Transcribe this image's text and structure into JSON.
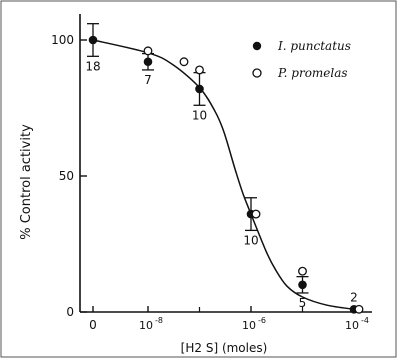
{
  "chart_data": {
    "type": "scatter",
    "title": "",
    "xlabel": "[H2 S]  (moles)",
    "ylabel": "%  Control  activity",
    "x_scale": "log",
    "x_ticks": [
      {
        "value": 0,
        "label": "0"
      },
      {
        "value": 1e-08,
        "base": "10",
        "exp": "-8"
      },
      {
        "value": 1e-06,
        "base": "10",
        "exp": "-6"
      },
      {
        "value": 0.0001,
        "base": "10",
        "exp": "-4"
      }
    ],
    "y_ticks": [
      0,
      50,
      100
    ],
    "ylim": [
      0,
      100
    ],
    "grid": false,
    "legend_position": "top-right",
    "series": [
      {
        "name": "I. punctatus",
        "marker": "filled-circle",
        "points": [
          {
            "x": 0,
            "y": 100,
            "err": 6,
            "n": "18"
          },
          {
            "x": 1e-08,
            "y": 92,
            "err": 3,
            "n": "7"
          },
          {
            "x": 1e-07,
            "y": 82,
            "err": 6,
            "n": "10"
          },
          {
            "x": 1e-06,
            "y": 36,
            "err": 6,
            "n": "10"
          },
          {
            "x": 1e-05,
            "y": 10,
            "err": 3,
            "n": "5"
          },
          {
            "x": 0.0001,
            "y": 1,
            "err": 0,
            "n": "2"
          }
        ]
      },
      {
        "name": "P. promelas",
        "marker": "open-circle",
        "points": [
          {
            "x": 1e-08,
            "y": 96
          },
          {
            "x": 5e-08,
            "y": 92
          },
          {
            "x": 1e-07,
            "y": 89
          },
          {
            "x": 1e-06,
            "y": 36
          },
          {
            "x": 1e-05,
            "y": 15
          },
          {
            "x": 0.0001,
            "y": 1
          }
        ]
      }
    ],
    "fit_curve": [
      [
        0,
        100
      ],
      [
        1e-08,
        95.3
      ],
      [
        3e-08,
        91
      ],
      [
        1e-07,
        82.5
      ],
      [
        2e-07,
        73.8
      ],
      [
        3e-07,
        66
      ],
      [
        5e-07,
        52
      ],
      [
        7e-07,
        43.5
      ],
      [
        1e-06,
        36
      ],
      [
        2e-06,
        22
      ],
      [
        3e-06,
        15.5
      ],
      [
        5e-06,
        9.5
      ],
      [
        1e-05,
        5.5
      ],
      [
        3e-05,
        2.5
      ],
      [
        0.0001,
        1
      ]
    ]
  }
}
